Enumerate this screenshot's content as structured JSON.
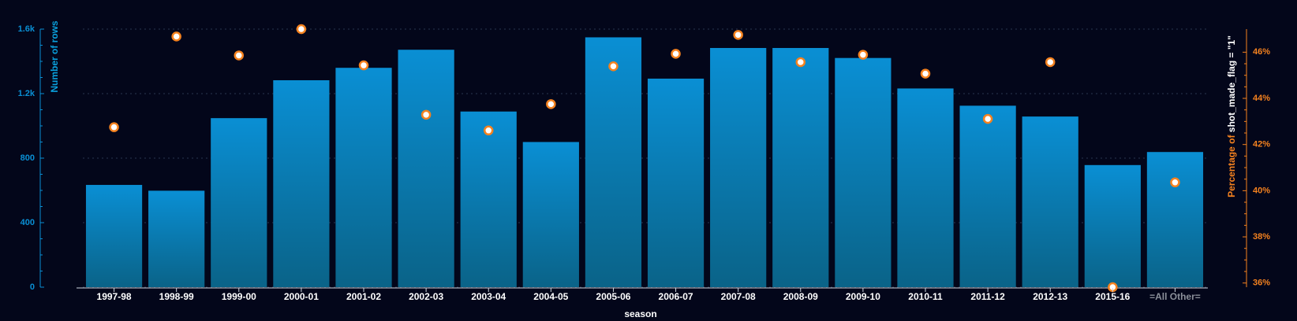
{
  "chart_data": {
    "type": "bar+scatter",
    "categories": [
      "1997-98",
      "1998-99",
      "1999-00",
      "2000-01",
      "2001-02",
      "2002-03",
      "2003-04",
      "2004-05",
      "2005-06",
      "2006-07",
      "2007-08",
      "2008-09",
      "2009-10",
      "2010-11",
      "2011-12",
      "2012-13",
      "2015-16",
      "=All Other="
    ],
    "series": [
      {
        "name": "Number of rows",
        "color": "#0a8fd4",
        "values": [
          634,
          598,
          1048,
          1283,
          1360,
          1472,
          1089,
          900,
          1549,
          1293,
          1483,
          1483,
          1421,
          1232,
          1125,
          1058,
          757,
          838
        ]
      },
      {
        "name": "Percentage of shot_made_flag = \"1\"",
        "color": "#f5821f",
        "axis": "y2",
        "values": [
          42.75,
          46.68,
          45.86,
          47.0,
          45.43,
          43.29,
          42.61,
          43.75,
          45.39,
          45.93,
          46.75,
          45.57,
          45.89,
          45.07,
          43.11,
          45.57,
          35.82,
          40.36
        ]
      }
    ],
    "xlabel": "season",
    "ylabel": "Number of rows",
    "y2label": [
      "Percentage of",
      "shot_made_flag = \"1\""
    ],
    "ylim": [
      0,
      1600
    ],
    "yticks": [
      0,
      400,
      800,
      {
        "value": 1200,
        "label": "1.2k"
      },
      {
        "value": 1600,
        "label": "1.6k"
      }
    ],
    "y2lim": [
      35.82,
      47.0
    ],
    "y2ticks": [
      {
        "value": 36,
        "label": "36%"
      },
      {
        "value": 38,
        "label": "38%"
      },
      {
        "value": 40,
        "label": "40%"
      },
      {
        "value": 42,
        "label": "42%"
      },
      {
        "value": 44,
        "label": "44%"
      },
      {
        "value": 46,
        "label": "46%"
      }
    ],
    "grid": true
  }
}
